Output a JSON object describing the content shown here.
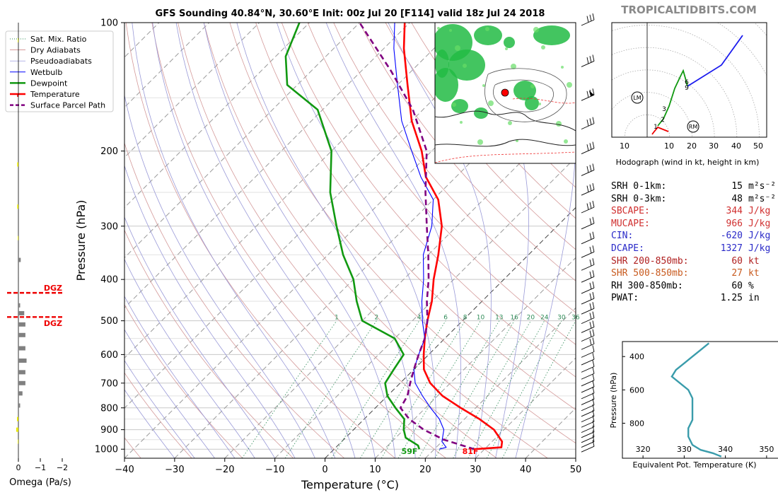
{
  "title": "GFS Sounding 40.84°N, 30.60°E Init: 00z Jul 20 [F114] valid 18z Jul 24 2018",
  "watermark": "TROPICALTIDBITS.COM",
  "legend": [
    {
      "label": "Sat. Mix. Ratio",
      "color": "#2e8b57",
      "style": "dotted"
    },
    {
      "label": "Dry Adiabats",
      "color": "#c87878",
      "style": "solid-thin"
    },
    {
      "label": "Pseudoadiabats",
      "color": "#8a8ad8",
      "style": "solid-thin"
    },
    {
      "label": "Wetbulb",
      "color": "#0000ff",
      "style": "solid"
    },
    {
      "label": "Dewpoint",
      "color": "#119911",
      "style": "thick"
    },
    {
      "label": "Temperature",
      "color": "#ff0000",
      "style": "thick"
    },
    {
      "label": "Surface Parcel Path",
      "color": "#800080",
      "style": "dashed"
    }
  ],
  "chart_data": [
    {
      "type": "line",
      "name": "skew-t",
      "xlabel": "Temperature (°C)",
      "ylabel": "Pressure (hPa)",
      "xlim": [
        -40,
        50
      ],
      "ylim": [
        1050,
        100
      ],
      "y_scale": "log",
      "x_ticks": [
        "−40",
        "−30",
        "−20",
        "−10",
        "0",
        "10",
        "20",
        "30",
        "40",
        "50"
      ],
      "y_ticks": [
        {
          "p": 100,
          "label": "100"
        },
        {
          "p": 200,
          "label": "200"
        },
        {
          "p": 300,
          "label": "300"
        },
        {
          "p": 400,
          "label": "400"
        },
        {
          "p": 500,
          "label": "500"
        },
        {
          "p": 600,
          "label": "600"
        },
        {
          "p": 700,
          "label": "700"
        },
        {
          "p": 800,
          "label": "800"
        },
        {
          "p": 900,
          "label": "900"
        },
        {
          "p": 1000,
          "label": "1000"
        }
      ],
      "mixing_ratio_labels": [
        "1",
        "2",
        "4",
        "6",
        "8",
        "10",
        "13",
        "16",
        "20",
        "24",
        "30",
        "36"
      ],
      "series": [
        {
          "name": "Temperature",
          "color": "#ff0000",
          "points": [
            [
              28,
              1000
            ],
            [
              33,
              990
            ],
            [
              32,
              960
            ],
            [
              28,
              900
            ],
            [
              23,
              850
            ],
            [
              17,
              800
            ],
            [
              11,
              750
            ],
            [
              6,
              700
            ],
            [
              2,
              650
            ],
            [
              -1,
              600
            ],
            [
              -4,
              550
            ],
            [
              -7,
              500
            ],
            [
              -10,
              450
            ],
            [
              -14,
              400
            ],
            [
              -18,
              350
            ],
            [
              -23,
              300
            ],
            [
              -29,
              260
            ],
            [
              -36,
              230
            ],
            [
              -42,
              200
            ],
            [
              -50,
              170
            ],
            [
              -58,
              140
            ],
            [
              -66,
              115
            ],
            [
              -71,
              100
            ]
          ]
        },
        {
          "name": "Dewpoint",
          "color": "#119911",
          "points": [
            [
              17,
              1000
            ],
            [
              16,
              980
            ],
            [
              12,
              940
            ],
            [
              10,
              900
            ],
            [
              8,
              850
            ],
            [
              4,
              800
            ],
            [
              0,
              750
            ],
            [
              -3,
              700
            ],
            [
              -4,
              650
            ],
            [
              -5,
              600
            ],
            [
              -10,
              550
            ],
            [
              -20,
              500
            ],
            [
              -25,
              450
            ],
            [
              -30,
              400
            ],
            [
              -37,
              350
            ],
            [
              -44,
              300
            ],
            [
              -52,
              250
            ],
            [
              -60,
              200
            ],
            [
              -71,
              160
            ],
            [
              -82,
              140
            ],
            [
              -88,
              120
            ],
            [
              -92,
              100
            ]
          ]
        },
        {
          "name": "Wetbulb",
          "color": "#0000ff",
          "points": [
            [
              21,
              1000
            ],
            [
              22,
              990
            ],
            [
              20,
              960
            ],
            [
              18,
              900
            ],
            [
              15,
              850
            ],
            [
              11,
              800
            ],
            [
              7,
              750
            ],
            [
              3,
              700
            ],
            [
              0,
              650
            ],
            [
              -2,
              600
            ],
            [
              -4,
              550
            ],
            [
              -8,
              500
            ],
            [
              -12,
              450
            ],
            [
              -16,
              400
            ],
            [
              -21,
              350
            ],
            [
              -25,
              300
            ],
            [
              -30,
              260
            ],
            [
              -37,
              230
            ],
            [
              -44,
              200
            ],
            [
              -52,
              170
            ],
            [
              -60,
              140
            ],
            [
              -68,
              115
            ],
            [
              -73,
              100
            ]
          ]
        },
        {
          "name": "Surface Parcel Path",
          "color": "#800080",
          "points": [
            [
              28,
              1000
            ],
            [
              20,
              950
            ],
            [
              14,
              900
            ],
            [
              9,
              850
            ],
            [
              5,
              800
            ],
            [
              4,
              750
            ],
            [
              2,
              700
            ],
            [
              0,
              650
            ],
            [
              -2,
              600
            ],
            [
              -4,
              550
            ],
            [
              -7,
              500
            ],
            [
              -11,
              450
            ],
            [
              -15,
              400
            ],
            [
              -20,
              350
            ],
            [
              -26,
              300
            ],
            [
              -33,
              250
            ],
            [
              -41,
              200
            ],
            [
              -52,
              160
            ],
            [
              -64,
              130
            ],
            [
              -80,
              100
            ]
          ]
        }
      ],
      "surface_labels": [
        {
          "text": "59F",
          "color": "#119911"
        },
        {
          "text": "81F",
          "color": "#ff0000"
        }
      ]
    },
    {
      "type": "line",
      "name": "hodograph",
      "xlabel": "Hodograph (wind in kt, height in km)",
      "ring_labels": [
        "10",
        "10",
        "20",
        "30",
        "40",
        "50"
      ],
      "height_labels": [
        "1",
        "2",
        "3",
        "6",
        "9"
      ],
      "storm_motion": [
        "LM",
        "RM"
      ]
    },
    {
      "type": "line",
      "name": "theta-e",
      "xlabel": "Equivalent Pot. Temperature (K)",
      "ylabel": "Pressure (hPa)",
      "xlim": [
        315,
        355
      ],
      "ylim": [
        1010,
        310
      ],
      "x_ticks": [
        "320",
        "330",
        "340",
        "350"
      ],
      "y_ticks": [
        "400",
        "600",
        "800"
      ],
      "series": [
        {
          "name": "theta-e",
          "color": "#3a9cab",
          "points": [
            [
              339,
              1000
            ],
            [
              337,
              980
            ],
            [
              334,
              960
            ],
            [
              332,
              930
            ],
            [
              331,
              880
            ],
            [
              331,
              830
            ],
            [
              332,
              780
            ],
            [
              332,
              700
            ],
            [
              332,
              650
            ],
            [
              331,
              600
            ],
            [
              329,
              560
            ],
            [
              327,
              520
            ],
            [
              328,
              480
            ],
            [
              330,
              440
            ],
            [
              332,
              400
            ],
            [
              334,
              360
            ],
            [
              336,
              320
            ]
          ]
        }
      ]
    },
    {
      "type": "bar",
      "name": "omega",
      "xlabel": "Omega (Pa/s)",
      "x_ticks": [
        "0",
        "−1",
        "−2"
      ],
      "dgz_label": "DGZ"
    }
  ],
  "indices": [
    {
      "name": "SRH 0-1km:",
      "value": "15",
      "unit": "m²s⁻²",
      "color": "#000000"
    },
    {
      "name": "SRH 0-3km:",
      "value": "48",
      "unit": "m²s⁻²",
      "color": "#000000"
    },
    {
      "name": "SBCAPE:",
      "value": "344",
      "unit": "J/kg",
      "color": "#d03030"
    },
    {
      "name": "MUCAPE:",
      "value": "966",
      "unit": "J/kg",
      "color": "#d03030"
    },
    {
      "name": "CIN:",
      "value": "-620",
      "unit": "J/kg",
      "color": "#2a2ac8"
    },
    {
      "name": "DCAPE:",
      "value": "1327",
      "unit": "J/kg",
      "color": "#2a2ac8"
    },
    {
      "name": "SHR 200-850mb:",
      "value": "60",
      "unit": "kt",
      "color": "#b02020"
    },
    {
      "name": "SHR 500-850mb:",
      "value": "27",
      "unit": "kt",
      "color": "#c85a1e"
    },
    {
      "name": "RH 300-850mb:",
      "value": "60",
      "unit": "%",
      "color": "#000000"
    },
    {
      "name": "PWAT:",
      "value": "1.25",
      "unit": "in",
      "color": "#000000"
    }
  ]
}
